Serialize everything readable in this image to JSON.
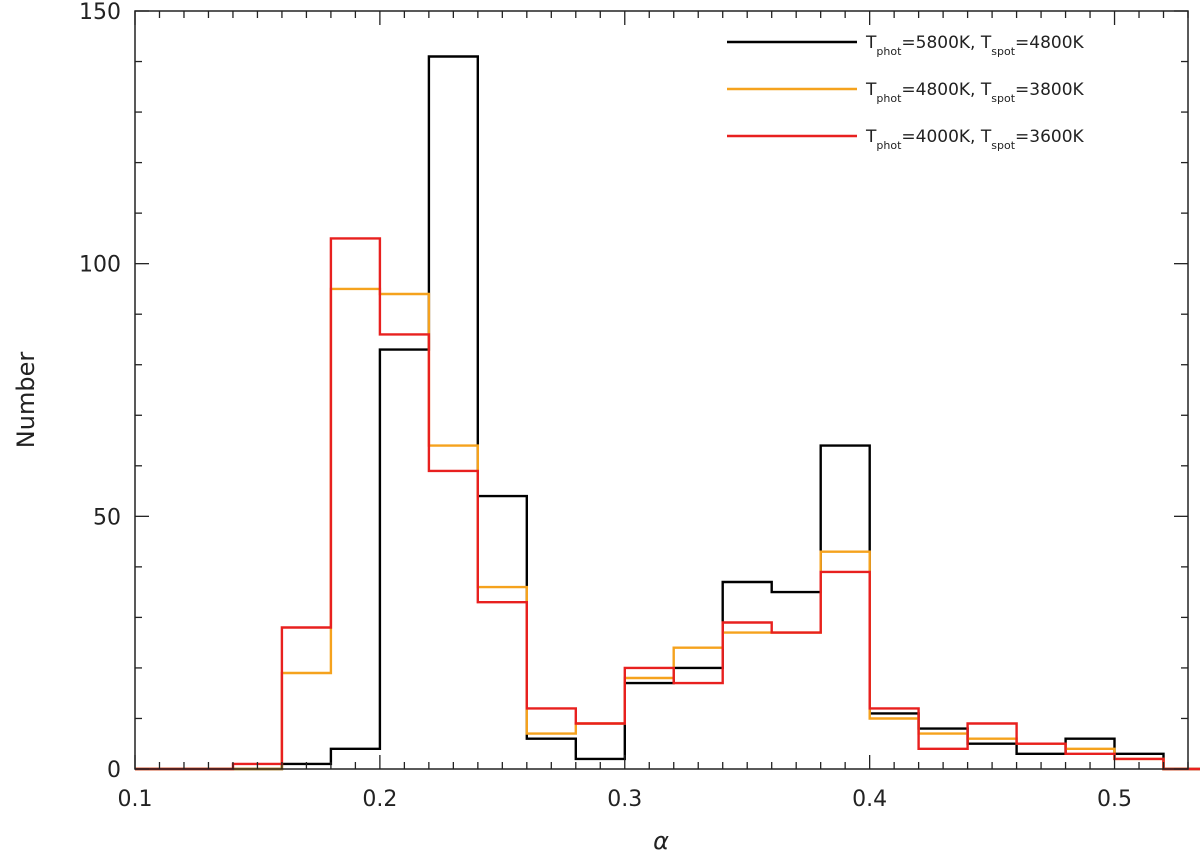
{
  "chart_data": {
    "type": "histogram",
    "xlabel": "α",
    "ylabel": "Number",
    "xlim": [
      0.1,
      0.53
    ],
    "ylim": [
      0,
      150
    ],
    "xticks": [
      0.1,
      0.2,
      0.3,
      0.4,
      0.5
    ],
    "yticks": [
      0,
      50,
      100,
      150
    ],
    "xtick_labels": [
      "0.1",
      "0.2",
      "0.3",
      "0.4",
      "0.5"
    ],
    "ytick_labels": [
      "0",
      "50",
      "100",
      "150"
    ],
    "legend_position": "top-right",
    "grid": false,
    "series": [
      {
        "key": "s1",
        "name": "Tphot=5800K, Tspot=4800K",
        "label_parts": [
          "T",
          "phot",
          "=5800K, T",
          "spot",
          "=4800K"
        ],
        "color": "#000000",
        "x": [
          0.1,
          0.12,
          0.14,
          0.16,
          0.18,
          0.2,
          0.22,
          0.24,
          0.26,
          0.28,
          0.3,
          0.32,
          0.34,
          0.36,
          0.38,
          0.4,
          0.42,
          0.44,
          0.46,
          0.48,
          0.5,
          0.52
        ],
        "y": [
          0,
          0,
          0,
          1,
          4,
          83,
          141,
          54,
          6,
          2,
          17,
          20,
          37,
          35,
          64,
          11,
          8,
          5,
          3,
          6,
          3,
          0
        ]
      },
      {
        "key": "s2",
        "name": "Tphot=4800K, Tspot=3800K",
        "label_parts": [
          "T",
          "phot",
          "=4800K, T",
          "spot",
          "=3800K"
        ],
        "color": "#f5a21d",
        "x": [
          0.1,
          0.12,
          0.14,
          0.16,
          0.18,
          0.2,
          0.22,
          0.24,
          0.26,
          0.28,
          0.3,
          0.32,
          0.34,
          0.36,
          0.38,
          0.4,
          0.42,
          0.44,
          0.46,
          0.48,
          0.5,
          0.52
        ],
        "y": [
          0,
          0,
          0,
          19,
          95,
          94,
          64,
          36,
          7,
          9,
          18,
          24,
          27,
          27,
          43,
          10,
          7,
          6,
          5,
          4,
          2,
          0
        ]
      },
      {
        "key": "s3",
        "name": "Tphot=4000K, Tspot=3600K",
        "label_parts": [
          "T",
          "phot",
          "=4000K, T",
          "spot",
          "=3600K"
        ],
        "color": "#e8201f",
        "x": [
          0.1,
          0.12,
          0.14,
          0.16,
          0.18,
          0.2,
          0.22,
          0.24,
          0.26,
          0.28,
          0.3,
          0.32,
          0.34,
          0.36,
          0.38,
          0.4,
          0.42,
          0.44,
          0.46,
          0.48,
          0.5,
          0.52
        ],
        "y": [
          0,
          0,
          1,
          28,
          105,
          86,
          59,
          33,
          12,
          9,
          20,
          17,
          29,
          27,
          39,
          12,
          4,
          9,
          5,
          3,
          2,
          0
        ]
      }
    ]
  }
}
